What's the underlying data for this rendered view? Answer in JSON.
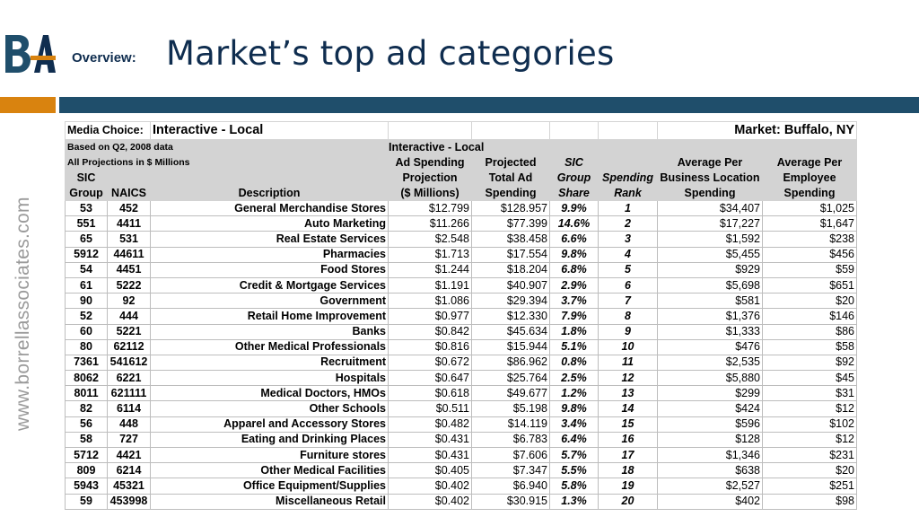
{
  "header": {
    "subtitle_label": "Overview:",
    "title": "Market’s top ad categories",
    "side_text": "www.borrellassociates.com",
    "brand_colors": {
      "navy": "#0f2d4f",
      "orange": "#d9830f",
      "blue": "#1f4e6b"
    }
  },
  "table": {
    "media_choice_label": "Media Choice:",
    "media_choice_value": "Interactive - Local",
    "market_label": "Market: Buffalo, NY",
    "note1": "Based on Q2, 2008 data",
    "note2": "All Projections in $ Millions",
    "group_header": "Interactive - Local",
    "headers": {
      "sic_line1": "SIC",
      "sic_line2": "Group",
      "naics": "NAICS",
      "description": "Description",
      "adspend": [
        "Ad Spending",
        "Projection",
        "($ Millions)"
      ],
      "total": [
        "Projected",
        "Total Ad",
        "Spending"
      ],
      "share": [
        "SIC",
        "Group",
        "Share"
      ],
      "rank": [
        "Spending",
        "Rank"
      ],
      "per_location": [
        "Average Per",
        "Business Location",
        "Spending"
      ],
      "per_employee": [
        "Average Per",
        "Employee",
        "Spending"
      ]
    },
    "rows": [
      {
        "sic": "53",
        "naics": "452",
        "desc": "General Merchandise Stores",
        "adspend": "$12.799",
        "total": "$128.957",
        "share": "9.9%",
        "rank": "1",
        "loc": "$34,407",
        "emp": "$1,025"
      },
      {
        "sic": "551",
        "naics": "4411",
        "desc": "Auto Marketing",
        "adspend": "$11.266",
        "total": "$77.399",
        "share": "14.6%",
        "rank": "2",
        "loc": "$17,227",
        "emp": "$1,647"
      },
      {
        "sic": "65",
        "naics": "531",
        "desc": "Real Estate Services",
        "adspend": "$2.548",
        "total": "$38.458",
        "share": "6.6%",
        "rank": "3",
        "loc": "$1,592",
        "emp": "$238"
      },
      {
        "sic": "5912",
        "naics": "44611",
        "desc": "Pharmacies",
        "adspend": "$1.713",
        "total": "$17.554",
        "share": "9.8%",
        "rank": "4",
        "loc": "$5,455",
        "emp": "$456"
      },
      {
        "sic": "54",
        "naics": "4451",
        "desc": "Food Stores",
        "adspend": "$1.244",
        "total": "$18.204",
        "share": "6.8%",
        "rank": "5",
        "loc": "$929",
        "emp": "$59"
      },
      {
        "sic": "61",
        "naics": "5222",
        "desc": "Credit & Mortgage Services",
        "adspend": "$1.191",
        "total": "$40.907",
        "share": "2.9%",
        "rank": "6",
        "loc": "$5,698",
        "emp": "$651"
      },
      {
        "sic": "90",
        "naics": "92",
        "desc": "Government",
        "adspend": "$1.086",
        "total": "$29.394",
        "share": "3.7%",
        "rank": "7",
        "loc": "$581",
        "emp": "$20"
      },
      {
        "sic": "52",
        "naics": "444",
        "desc": "Retail Home Improvement",
        "adspend": "$0.977",
        "total": "$12.330",
        "share": "7.9%",
        "rank": "8",
        "loc": "$1,376",
        "emp": "$146"
      },
      {
        "sic": "60",
        "naics": "5221",
        "desc": "Banks",
        "adspend": "$0.842",
        "total": "$45.634",
        "share": "1.8%",
        "rank": "9",
        "loc": "$1,333",
        "emp": "$86"
      },
      {
        "sic": "80",
        "naics": "62112",
        "desc": "Other Medical Professionals",
        "adspend": "$0.816",
        "total": "$15.944",
        "share": "5.1%",
        "rank": "10",
        "loc": "$476",
        "emp": "$58"
      },
      {
        "sic": "7361",
        "naics": "541612",
        "desc": "Recruitment",
        "adspend": "$0.672",
        "total": "$86.962",
        "share": "0.8%",
        "rank": "11",
        "loc": "$2,535",
        "emp": "$92"
      },
      {
        "sic": "8062",
        "naics": "6221",
        "desc": "Hospitals",
        "adspend": "$0.647",
        "total": "$25.764",
        "share": "2.5%",
        "rank": "12",
        "loc": "$5,880",
        "emp": "$45"
      },
      {
        "sic": "8011",
        "naics": "621111",
        "desc": "Medical Doctors, HMOs",
        "adspend": "$0.618",
        "total": "$49.677",
        "share": "1.2%",
        "rank": "13",
        "loc": "$299",
        "emp": "$31"
      },
      {
        "sic": "82",
        "naics": "6114",
        "desc": "Other Schools",
        "adspend": "$0.511",
        "total": "$5.198",
        "share": "9.8%",
        "rank": "14",
        "loc": "$424",
        "emp": "$12"
      },
      {
        "sic": "56",
        "naics": "448",
        "desc": "Apparel and Accessory Stores",
        "adspend": "$0.482",
        "total": "$14.119",
        "share": "3.4%",
        "rank": "15",
        "loc": "$596",
        "emp": "$102"
      },
      {
        "sic": "58",
        "naics": "727",
        "desc": "Eating and Drinking Places",
        "adspend": "$0.431",
        "total": "$6.783",
        "share": "6.4%",
        "rank": "16",
        "loc": "$128",
        "emp": "$12"
      },
      {
        "sic": "5712",
        "naics": "4421",
        "desc": "Furniture stores",
        "adspend": "$0.431",
        "total": "$7.606",
        "share": "5.7%",
        "rank": "17",
        "loc": "$1,346",
        "emp": "$231"
      },
      {
        "sic": "809",
        "naics": "6214",
        "desc": "Other Medical Facilities",
        "adspend": "$0.405",
        "total": "$7.347",
        "share": "5.5%",
        "rank": "18",
        "loc": "$638",
        "emp": "$20"
      },
      {
        "sic": "5943",
        "naics": "45321",
        "desc": "Office Equipment/Supplies",
        "adspend": "$0.402",
        "total": "$6.940",
        "share": "5.8%",
        "rank": "19",
        "loc": "$2,527",
        "emp": "$251"
      },
      {
        "sic": "59",
        "naics": "453998",
        "desc": "Miscellaneous Retail",
        "adspend": "$0.402",
        "total": "$30.915",
        "share": "1.3%",
        "rank": "20",
        "loc": "$402",
        "emp": "$98"
      }
    ]
  }
}
